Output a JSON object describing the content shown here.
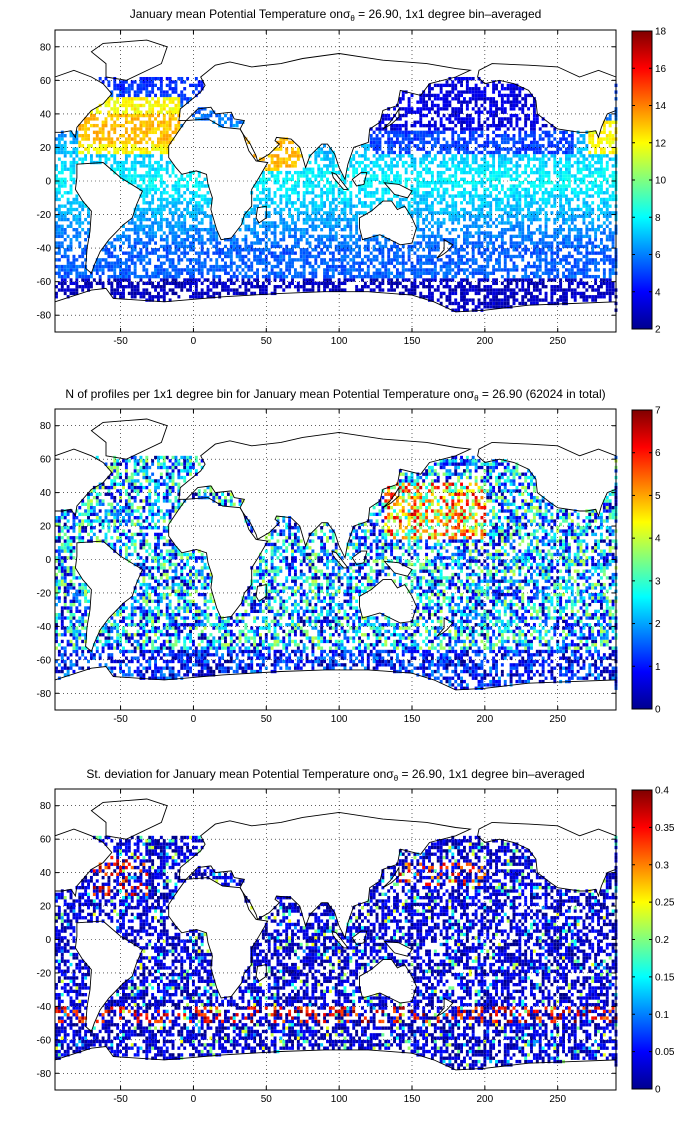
{
  "chart_data": [
    {
      "type": "heatmap",
      "title_main": "January mean Potential Temperature on",
      "title_sym": "σ",
      "title_sub": "θ",
      "title_rest": " = 26.90, 1x1 degree bin–averaged",
      "xlim": [
        -95,
        290
      ],
      "ylim": [
        -90,
        90
      ],
      "xticks": [
        -50,
        0,
        50,
        100,
        150,
        200,
        250
      ],
      "yticks": [
        80,
        60,
        40,
        20,
        0,
        -20,
        -40,
        -60,
        -80
      ],
      "grid": true,
      "colorbar": {
        "min": 2,
        "max": 18,
        "ticks": [
          2,
          4,
          6,
          8,
          10,
          12,
          14,
          16,
          18
        ]
      }
    },
    {
      "type": "heatmap",
      "title_main": "N of profiles per 1x1 degree bin for January mean Potential Temperature on",
      "title_sym": "σ",
      "title_sub": "θ",
      "title_rest": " = 26.90 (62024 in total)",
      "xlim": [
        -95,
        290
      ],
      "ylim": [
        -90,
        90
      ],
      "xticks": [
        -50,
        0,
        50,
        100,
        150,
        200,
        250
      ],
      "yticks": [
        80,
        60,
        40,
        20,
        0,
        -20,
        -40,
        -60,
        -80
      ],
      "grid": true,
      "colorbar": {
        "min": 0,
        "max": 7,
        "ticks": [
          0,
          1,
          2,
          3,
          4,
          5,
          6,
          7
        ]
      }
    },
    {
      "type": "heatmap",
      "title_main": "St. deviation for January mean Potential Temperature on",
      "title_sym": "σ",
      "title_sub": "θ",
      "title_rest": " = 26.90, 1x1 degree bin–averaged",
      "xlim": [
        -95,
        290
      ],
      "ylim": [
        -90,
        90
      ],
      "xticks": [
        -50,
        0,
        50,
        100,
        150,
        200,
        250
      ],
      "yticks": [
        80,
        60,
        40,
        20,
        0,
        -20,
        -40,
        -60,
        -80
      ],
      "grid": true,
      "colorbar": {
        "min": 0,
        "max": 0.4,
        "ticks": [
          0,
          0.05,
          0.1,
          0.15,
          0.2,
          0.25,
          0.3,
          0.35,
          0.4
        ]
      }
    }
  ]
}
